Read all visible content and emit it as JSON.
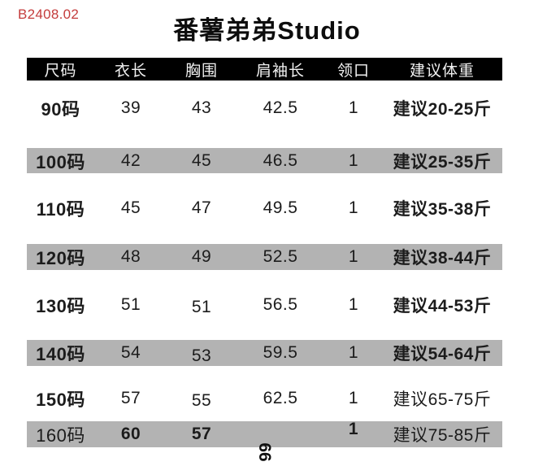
{
  "code": "B2408.02",
  "title": "番薯弟弟Studio",
  "colors": {
    "accent_red": "#c43c3c",
    "header_bg": "#000000",
    "header_fg": "#f2f2f2",
    "stripe_gray": "#b3b3b3",
    "text": "#1c1c1c"
  },
  "table": {
    "columns": [
      "尺码",
      "衣长",
      "胸围",
      "肩袖长",
      "领口",
      "建议体重"
    ],
    "rows": [
      {
        "size": "90码",
        "length": "39",
        "chest": "43",
        "sleeve": "42.5",
        "neck": "1",
        "weight": "建议20-25斤"
      },
      {
        "size": "100码",
        "length": "42",
        "chest": "45",
        "sleeve": "46.5",
        "neck": "1",
        "weight": "建议25-35斤"
      },
      {
        "size": "110码",
        "length": "45",
        "chest": "47",
        "sleeve": "49.5",
        "neck": "1",
        "weight": "建议35-38斤"
      },
      {
        "size": "120码",
        "length": "48",
        "chest": "49",
        "sleeve": "52.5",
        "neck": "1",
        "weight": "建议38-44斤"
      },
      {
        "size": "130码",
        "length": "51",
        "chest": "51",
        "sleeve": "56.5",
        "neck": "1",
        "weight": "建议44-53斤"
      },
      {
        "size": "140码",
        "length": "54",
        "chest": "53",
        "sleeve": "59.5",
        "neck": "1",
        "weight": "建议54-64斤"
      },
      {
        "size": "150码",
        "length": "57",
        "chest": "55",
        "sleeve": "62.5",
        "neck": "1",
        "weight": "建议65-75斤"
      },
      {
        "size": "160码",
        "length": "60",
        "chest": "57",
        "sleeve": "",
        "neck": "1",
        "weight": "建议75-85斤"
      }
    ],
    "cut_off_sleeve_value": "66"
  }
}
